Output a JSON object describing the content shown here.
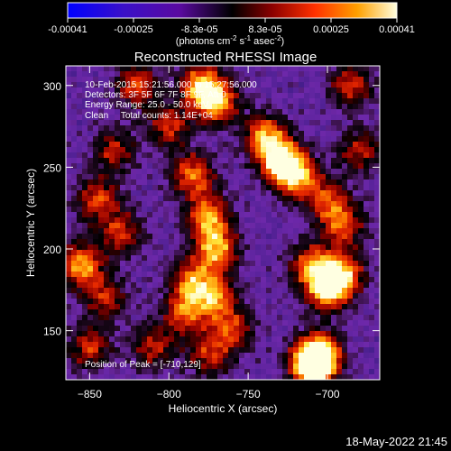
{
  "chart_data": {
    "type": "heatmap",
    "title": "Reconstructed RHESSI Image",
    "xlabel": "Heliocentric X (arcsec)",
    "ylabel": "Heliocentric Y (arcsec)",
    "xlim": [
      -865,
      -667
    ],
    "ylim": [
      120,
      312
    ],
    "xticks": [
      -850,
      -800,
      -750,
      -700
    ],
    "yticks": [
      150,
      200,
      250,
      300
    ],
    "colorbar": {
      "ticks": [
        "-0.00041",
        "-0.00025",
        "-8.3e-05",
        "8.3e-05",
        "0.00025",
        "0.00041"
      ],
      "unit_prefix": "(photons cm",
      "unit_exp1": "-2",
      "unit_mid": " s",
      "unit_exp2": "-1",
      "unit_mid2": " asec",
      "unit_exp3": "-2",
      "unit_suffix": ")",
      "range": [
        -0.00041,
        0.00041
      ]
    },
    "annotations": [
      "10-Feb-2015 15:21:56.000 to 15:27:56.000",
      "Detectors: 3F 5F 6F 7F 8F 9F, Att 0",
      "Energy Range: 25.0 - 50.0 keV",
      "Clean     Total counts: 1.14E+04"
    ],
    "peak_label": "Position of Peak = [-710,129]",
    "peak_position": [
      -710,
      129
    ],
    "timestamp": "18-May-2022 21:45",
    "hotspots": [
      {
        "x": -710,
        "y": 129,
        "w": 1.0
      },
      {
        "x": -705,
        "y": 135,
        "w": 0.95
      },
      {
        "x": -700,
        "y": 175,
        "w": 0.85
      },
      {
        "x": -690,
        "y": 185,
        "w": 0.75
      },
      {
        "x": -710,
        "y": 190,
        "w": 0.7
      },
      {
        "x": -730,
        "y": 255,
        "w": 0.9
      },
      {
        "x": -720,
        "y": 245,
        "w": 0.85
      },
      {
        "x": -740,
        "y": 270,
        "w": 0.7
      },
      {
        "x": -780,
        "y": 300,
        "w": 0.75
      },
      {
        "x": -770,
        "y": 290,
        "w": 0.8
      },
      {
        "x": -785,
        "y": 245,
        "w": 0.7
      },
      {
        "x": -775,
        "y": 220,
        "w": 0.75
      },
      {
        "x": -770,
        "y": 200,
        "w": 0.8
      },
      {
        "x": -785,
        "y": 180,
        "w": 0.7
      },
      {
        "x": -790,
        "y": 160,
        "w": 0.6
      },
      {
        "x": -770,
        "y": 170,
        "w": 0.65
      },
      {
        "x": -760,
        "y": 150,
        "w": 0.55
      },
      {
        "x": -775,
        "y": 135,
        "w": 0.5
      },
      {
        "x": -855,
        "y": 190,
        "w": 0.8
      },
      {
        "x": -845,
        "y": 230,
        "w": 0.6
      },
      {
        "x": -835,
        "y": 260,
        "w": 0.5
      },
      {
        "x": -830,
        "y": 210,
        "w": 0.55
      },
      {
        "x": -840,
        "y": 170,
        "w": 0.5
      },
      {
        "x": -850,
        "y": 140,
        "w": 0.55
      },
      {
        "x": -810,
        "y": 140,
        "w": 0.5
      },
      {
        "x": -690,
        "y": 215,
        "w": 0.6
      },
      {
        "x": -680,
        "y": 260,
        "w": 0.5
      },
      {
        "x": -685,
        "y": 300,
        "w": 0.55
      },
      {
        "x": -700,
        "y": 230,
        "w": 0.55
      },
      {
        "x": -820,
        "y": 300,
        "w": 0.6
      },
      {
        "x": -800,
        "y": 275,
        "w": 0.55
      }
    ]
  }
}
